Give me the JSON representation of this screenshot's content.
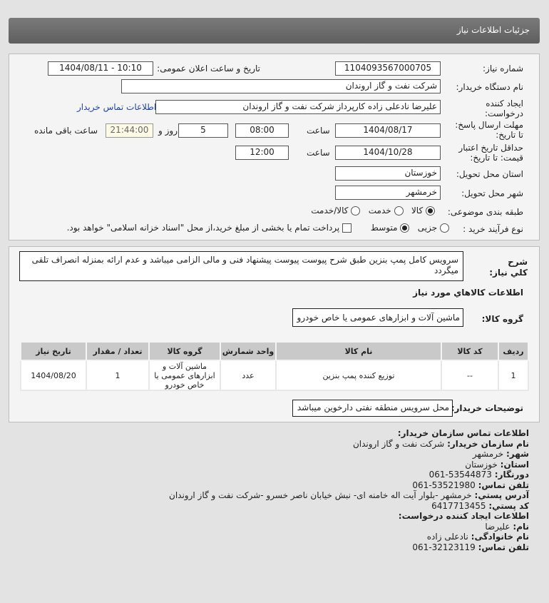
{
  "header": {
    "title": "جزئیات اطلاعات نیاز"
  },
  "form": {
    "need_number_label": "شماره نیاز:",
    "need_number": "1104093567000705",
    "announce_label": "تاریخ و ساعت اعلان عمومی:",
    "announce_value": "1404/08/11 - 10:10",
    "buyer_org_label": "نام دستگاه خریدار:",
    "buyer_org": "شرکت نفت و گاز اروندان",
    "creator_label": "ایجاد کننده درخواست:",
    "creator": "علیرضا نادعلی زاده کارپرداز شرکت نفت و گاز اروندان",
    "contact_link": "اطلاعات تماس خریدار",
    "deadline_label": "مهلت ارسال پاسخ: تا تاریخ:",
    "deadline_date": "1404/08/17",
    "time_label": "ساعت",
    "deadline_time": "08:00",
    "days": "5",
    "days_label": "روز و",
    "remaining": "21:44:00",
    "remaining_label": "ساعت باقی مانده",
    "validity_label": "حداقل تاریخ اعتبار قیمت: تا تاریخ:",
    "validity_date": "1404/10/28",
    "validity_time": "12:00",
    "province_label": "استان محل تحویل:",
    "province": "خوزستان",
    "city_label": "شهر محل تحویل:",
    "city": "خرمشهر",
    "category_label": "طبقه بندی موضوعی:",
    "category_options": [
      "کالا",
      "خدمت",
      "کالا/خدمت"
    ],
    "category_selected": "کالا",
    "process_label": "نوع فرآیند خرید :",
    "process_options": [
      "جزیی",
      "متوسط"
    ],
    "process_selected": "متوسط",
    "payment_note": "پرداخت تمام یا بخشی از مبلغ خرید،از محل \"اسناد خزانه اسلامی\" خواهد بود."
  },
  "details": {
    "desc_label": "شرح کلي نیاز:",
    "description": "سرویس کامل پمپ بنزین طبق شرح پیوست پیوست پیشنهاد فنی و مالی الزامی میباشد و عدم ارائه بمنزله انصراف تلقی میگردد",
    "goods_heading": "اطلاعات کالاهاي مورد نیاز",
    "group_label": "گروه کالا:",
    "group": "ماشین آلات و ابزارهای عمومی یا خاص خودرو",
    "table": {
      "headers": [
        "ردیف",
        "کد کالا",
        "نام کالا",
        "واحد شمارش",
        "گروه کالا",
        "تعداد / مقدار",
        "تاریخ نیاز"
      ],
      "rows": [
        [
          "1",
          "--",
          "توزیع کننده پمپ بنزین",
          "عدد",
          "ماشین آلات و ابزارهای عمومی یا خاص خودرو",
          "1",
          "1404/08/20"
        ]
      ]
    },
    "notes_label": "توضیحات خریدار:",
    "notes": "محل سرویس منطقه نفتی دارخوین میباشد"
  },
  "contact": {
    "heading": "اطلاعات تماس سازمان خریدار:",
    "org_label": "نام سازمان خریدار:",
    "org": "شرکت نفت و گاز اروندان",
    "city_label": "شهر:",
    "city": "خرمشهر",
    "province_label": "استان:",
    "province": "خوزستان",
    "fax_label": "دورنگار:",
    "fax": "53544873-061",
    "phone_label": "تلفن تماس:",
    "phone": "53521980-061",
    "address_label": "آدرس پستي:",
    "address": "خرمشهر -بلوار آیت اله خامنه ای- نبش خیابان ناصر خسرو -شرکت نفت و گاز اروندان",
    "postal_label": "کد پستي:",
    "postal": "6417713455",
    "creator_heading": "اطلاعات ایجاد کننده درخواست:",
    "name_label": "نام:",
    "name": "علیرضا",
    "family_label": "نام خانوادگی:",
    "family": "نادعلی زاده",
    "creator_phone_label": "تلفن تماس:",
    "creator_phone": "32123119-061"
  }
}
